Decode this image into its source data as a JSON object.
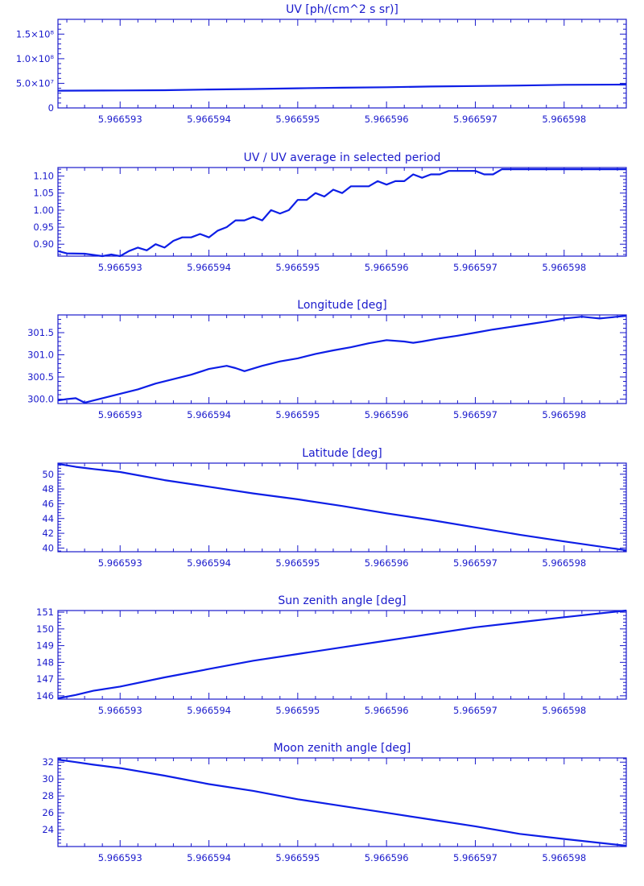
{
  "colors": {
    "line": "#0d1ee6",
    "text": "#1a1acc"
  },
  "x_tick_labels": [
    "5.966593",
    "5.966594",
    "5.966595",
    "5.966596",
    "5.966597",
    "5.966598"
  ],
  "chart_data": [
    {
      "type": "line",
      "title": "UV [ph/(cm^2 s sr)]",
      "xlim": [
        5.9665923,
        5.9665987
      ],
      "ylim": [
        0,
        180000000.0
      ],
      "yticks": [
        0,
        50000000.0,
        100000000.0,
        150000000.0
      ],
      "ytick_labels": [
        "0",
        "5.0×10⁷",
        "1.0×10⁸",
        "1.5×10⁸"
      ],
      "x": [
        5.9665923,
        5.966593,
        5.9665935,
        5.966594,
        5.9665945,
        5.966595,
        5.9665955,
        5.966596,
        5.9665965,
        5.966597,
        5.9665975,
        5.966598,
        5.9665987
      ],
      "y": [
        35000000.0,
        35500000.0,
        36000000.0,
        37500000.0,
        38500000.0,
        40000000.0,
        41000000.0,
        42000000.0,
        43500000.0,
        44500000.0,
        45500000.0,
        47000000.0,
        47500000.0
      ]
    },
    {
      "type": "line",
      "title": "UV / UV average in selected period",
      "xlim": [
        5.9665923,
        5.9665987
      ],
      "ylim": [
        0.865,
        1.125
      ],
      "yticks": [
        0.9,
        0.95,
        1.0,
        1.05,
        1.1
      ],
      "ytick_labels": [
        "0.90",
        "0.95",
        "1.00",
        "1.05",
        "1.10"
      ],
      "x": [
        5.9665923,
        5.9665924,
        5.9665926,
        5.9665928,
        5.9665929,
        5.966593,
        5.9665931,
        5.9665932,
        5.9665933,
        5.9665934,
        5.9665935,
        5.9665936,
        5.9665937,
        5.9665938,
        5.9665939,
        5.966594,
        5.9665941,
        5.9665942,
        5.9665943,
        5.9665944,
        5.9665945,
        5.9665946,
        5.9665947,
        5.9665948,
        5.9665949,
        5.966595,
        5.9665951,
        5.9665952,
        5.9665953,
        5.9665954,
        5.9665955,
        5.9665956,
        5.9665957,
        5.9665958,
        5.9665959,
        5.966596,
        5.9665961,
        5.9665962,
        5.9665963,
        5.9665964,
        5.9665965,
        5.9665966,
        5.9665967,
        5.9665968,
        5.9665969,
        5.966597,
        5.9665971,
        5.9665972,
        5.9665973,
        5.9665974,
        5.9665975,
        5.9665976,
        5.9665977,
        5.9665978,
        5.9665979,
        5.966598,
        5.9665981,
        5.9665982,
        5.9665983,
        5.9665984,
        5.9665985,
        5.9665986,
        5.9665987
      ],
      "y": [
        0.88,
        0.873,
        0.872,
        0.865,
        0.87,
        0.865,
        0.88,
        0.89,
        0.882,
        0.9,
        0.89,
        0.91,
        0.92,
        0.92,
        0.93,
        0.92,
        0.94,
        0.95,
        0.97,
        0.97,
        0.98,
        0.97,
        1.0,
        0.99,
        1.0,
        1.03,
        1.03,
        1.05,
        1.04,
        1.06,
        1.05,
        1.07,
        1.07,
        1.07,
        1.085,
        1.075,
        1.085,
        1.085,
        1.105,
        1.095,
        1.105,
        1.105,
        1.115,
        1.115,
        1.115,
        1.115,
        1.105,
        1.105,
        1.12,
        1.12,
        1.12,
        1.12,
        1.12,
        1.12,
        1.12,
        1.12,
        1.12,
        1.12,
        1.12,
        1.12,
        1.12,
        1.12,
        1.12
      ]
    },
    {
      "type": "line",
      "title": "Longitude [deg]",
      "xlim": [
        5.9665923,
        5.9665987
      ],
      "ylim": [
        299.9,
        301.9
      ],
      "yticks": [
        300.0,
        300.5,
        301.0,
        301.5
      ],
      "ytick_labels": [
        "300.0",
        "300.5",
        "301.0",
        "301.5"
      ],
      "x": [
        5.9665923,
        5.9665924,
        5.9665925,
        5.9665926,
        5.9665928,
        5.966593,
        5.9665932,
        5.9665934,
        5.9665936,
        5.9665938,
        5.966594,
        5.9665942,
        5.9665943,
        5.9665944,
        5.9665946,
        5.9665948,
        5.966595,
        5.9665952,
        5.9665954,
        5.9665956,
        5.9665958,
        5.966596,
        5.9665962,
        5.9665963,
        5.9665964,
        5.9665966,
        5.9665968,
        5.966597,
        5.9665972,
        5.9665974,
        5.9665976,
        5.9665978,
        5.966598,
        5.9665981,
        5.9665982,
        5.9665983,
        5.9665984,
        5.9665985,
        5.9665986,
        5.9665987
      ],
      "y": [
        299.97,
        300.0,
        300.02,
        299.92,
        300.02,
        300.12,
        300.22,
        300.35,
        300.45,
        300.55,
        300.68,
        300.75,
        300.7,
        300.63,
        300.75,
        300.85,
        300.92,
        301.02,
        301.1,
        301.17,
        301.26,
        301.33,
        301.3,
        301.27,
        301.3,
        301.37,
        301.43,
        301.5,
        301.57,
        301.63,
        301.69,
        301.75,
        301.82,
        301.84,
        301.86,
        301.84,
        301.82,
        301.84,
        301.86,
        301.88
      ]
    },
    {
      "type": "line",
      "title": "Latitude [deg]",
      "xlim": [
        5.9665923,
        5.9665987
      ],
      "ylim": [
        39.5,
        51.5
      ],
      "yticks": [
        40,
        42,
        44,
        46,
        48,
        50
      ],
      "ytick_labels": [
        "40",
        "42",
        "44",
        "46",
        "48",
        "50"
      ],
      "x": [
        5.9665923,
        5.9665925,
        5.9665927,
        5.966593,
        5.9665935,
        5.966594,
        5.9665945,
        5.966595,
        5.9665955,
        5.966596,
        5.9665965,
        5.966597,
        5.9665975,
        5.966598,
        5.9665987
      ],
      "y": [
        51.4,
        51.0,
        50.7,
        50.3,
        49.2,
        48.3,
        47.4,
        46.6,
        45.7,
        44.7,
        43.8,
        42.8,
        41.8,
        40.9,
        39.7
      ]
    },
    {
      "type": "line",
      "title": "Sun zenith angle [deg]",
      "xlim": [
        5.9665923,
        5.9665987
      ],
      "ylim": [
        145.8,
        151.1
      ],
      "yticks": [
        146,
        147,
        148,
        149,
        150,
        151
      ],
      "ytick_labels": [
        "146",
        "147",
        "148",
        "149",
        "150",
        "151"
      ],
      "x": [
        5.9665923,
        5.9665925,
        5.9665927,
        5.966593,
        5.9665935,
        5.966594,
        5.9665945,
        5.966595,
        5.9665955,
        5.966596,
        5.9665965,
        5.966597,
        5.9665975,
        5.966598,
        5.9665987
      ],
      "y": [
        145.85,
        146.05,
        146.3,
        146.55,
        147.1,
        147.6,
        148.1,
        148.5,
        148.9,
        149.3,
        149.7,
        150.1,
        150.4,
        150.7,
        151.1
      ]
    },
    {
      "type": "line",
      "title": "Moon zenith angle [deg]",
      "xlim": [
        5.9665923,
        5.9665987
      ],
      "ylim": [
        22.0,
        32.5
      ],
      "yticks": [
        24,
        26,
        28,
        30,
        32
      ],
      "ytick_labels": [
        "24",
        "26",
        "28",
        "30",
        "32"
      ],
      "x": [
        5.9665923,
        5.9665925,
        5.9665927,
        5.966593,
        5.9665935,
        5.966594,
        5.9665945,
        5.966595,
        5.9665955,
        5.966596,
        5.9665965,
        5.966597,
        5.9665975,
        5.966598,
        5.9665987
      ],
      "y": [
        32.3,
        32.0,
        31.7,
        31.3,
        30.4,
        29.4,
        28.6,
        27.6,
        26.8,
        26.0,
        25.2,
        24.4,
        23.5,
        22.9,
        22.1
      ]
    }
  ]
}
